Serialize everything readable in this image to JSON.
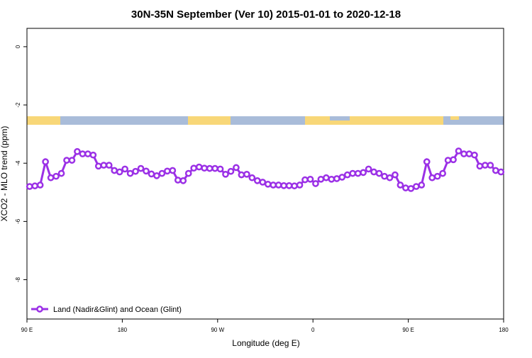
{
  "chart_data": {
    "type": "line",
    "title": "30N-35N September (Ver 10)   2015-01-01 to 2020-12-18",
    "xlabel": "Longitude (deg E)",
    "ylabel": "XCO2 - MLO trend (ppm)",
    "x": [
      92.5,
      97.5,
      102.5,
      107.5,
      112.5,
      117.5,
      122.5,
      127.5,
      132.5,
      137.5,
      142.5,
      147.5,
      152.5,
      157.5,
      162.5,
      167.5,
      172.5,
      177.5,
      182.5,
      187.5,
      192.5,
      197.5,
      202.5,
      207.5,
      212.5,
      217.5,
      222.5,
      227.5,
      232.5,
      237.5,
      242.5,
      247.5,
      252.5,
      257.5,
      262.5,
      267.5,
      272.5,
      277.5,
      282.5,
      287.5,
      292.5,
      297.5,
      302.5,
      307.5,
      312.5,
      317.5,
      322.5,
      327.5,
      332.5,
      337.5,
      342.5,
      347.5,
      352.5,
      357.5,
      362.5,
      367.5,
      372.5,
      377.5,
      382.5,
      387.5,
      392.5,
      397.5,
      402.5,
      407.5,
      412.5,
      417.5,
      422.5,
      427.5,
      432.5,
      437.5,
      442.5,
      447.5,
      452.5,
      457.5,
      462.5,
      467.5,
      472.5,
      477.5,
      482.5,
      487.5,
      492.5,
      497.5,
      502.5,
      507.5,
      512.5,
      517.5,
      522.5,
      527.5,
      532.5,
      537.5
    ],
    "series": [
      {
        "name": "Land (Nadir&Glint) and Ocean (Glint)",
        "color": "#9b30e6",
        "values": [
          -4.8,
          -4.78,
          -4.75,
          -3.95,
          -4.5,
          -4.45,
          -4.35,
          -3.9,
          -3.9,
          -3.6,
          -3.68,
          -3.68,
          -3.72,
          -4.1,
          -4.07,
          -4.07,
          -4.25,
          -4.3,
          -4.2,
          -4.35,
          -4.28,
          -4.18,
          -4.27,
          -4.37,
          -4.43,
          -4.35,
          -4.27,
          -4.25,
          -4.58,
          -4.6,
          -4.35,
          -4.17,
          -4.13,
          -4.17,
          -4.18,
          -4.18,
          -4.2,
          -4.38,
          -4.28,
          -4.15,
          -4.4,
          -4.38,
          -4.5,
          -4.6,
          -4.65,
          -4.72,
          -4.75,
          -4.75,
          -4.77,
          -4.77,
          -4.78,
          -4.75,
          -4.57,
          -4.55,
          -4.7,
          -4.55,
          -4.5,
          -4.55,
          -4.53,
          -4.48,
          -4.4,
          -4.35,
          -4.35,
          -4.32,
          -4.2,
          -4.3,
          -4.35,
          -4.45,
          -4.5,
          -4.4,
          -4.75,
          -4.85,
          -4.87,
          -4.8,
          -4.75,
          -3.95,
          -4.5,
          -4.45,
          -4.35,
          -3.9,
          -3.88,
          -3.58,
          -3.68,
          -3.68,
          -3.72,
          -4.1,
          -4.07,
          -4.07,
          -4.25,
          -4.3
        ]
      }
    ],
    "xlim": [
      90,
      540
    ],
    "xticks": [
      {
        "value": 90,
        "label": "90 E"
      },
      180,
      {
        "value": 270,
        "label": "90 W"
      },
      {
        "value": 360,
        "label": "0"
      },
      {
        "value": 450,
        "label": "90 E"
      },
      {
        "value": 540,
        "label": "180"
      }
    ],
    "ylim": [
      -9.35,
      0.63
    ],
    "yticks": [
      0,
      -2,
      -4,
      -6,
      -8
    ],
    "legend": "bottom-left"
  }
}
